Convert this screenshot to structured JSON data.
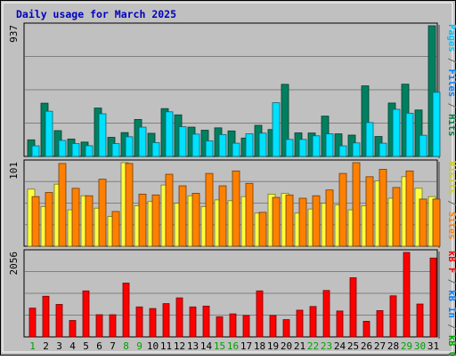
{
  "chart_data": {
    "type": "bar",
    "title": "Daily usage for March 2025",
    "categories": [
      "1",
      "2",
      "3",
      "4",
      "5",
      "6",
      "7",
      "8",
      "9",
      "10",
      "11",
      "12",
      "13",
      "14",
      "15",
      "16",
      "17",
      "18",
      "19",
      "20",
      "21",
      "22",
      "23",
      "24",
      "25",
      "26",
      "27",
      "28",
      "29",
      "30",
      "31"
    ],
    "weekend_days": [
      1,
      8,
      9,
      15,
      16,
      22,
      23,
      29,
      30
    ],
    "panels": [
      {
        "id": "hits-files-pages",
        "ymax_label": "937",
        "ylim": [
          0,
          937
        ],
        "legend": [
          {
            "text": "Pages",
            "color": "#00c0ff"
          },
          {
            "text": " / ",
            "color": "#666666"
          },
          {
            "text": "Files",
            "color": "#0080ff"
          },
          {
            "text": " / ",
            "color": "#666666"
          },
          {
            "text": "Hits",
            "color": "#008040"
          }
        ],
        "series": [
          {
            "name": "Hits",
            "color": "#008060",
            "values": [
              119,
              382,
              185,
              125,
              103,
              347,
              137,
              171,
              265,
              166,
              343,
              298,
              210,
              188,
              205,
              183,
              132,
              223,
              193,
              517,
              169,
              168,
              289,
              162,
              153,
              506,
              143,
              383,
              518,
              333,
              937
            ]
          },
          {
            "name": "Pages",
            "color": "#00e0ff",
            "values": [
              76,
              324,
              115,
              92,
              77,
              306,
              92,
              141,
              210,
              99,
              320,
              213,
              160,
              112,
              157,
              95,
              162,
              167,
              385,
              122,
              122,
              148,
              162,
              76,
              97,
              243,
              95,
              338,
              310,
              152,
              460
            ]
          }
        ]
      },
      {
        "id": "visits-sites",
        "ymax_label": "101",
        "ylim": [
          0,
          101
        ],
        "legend": [
          {
            "text": "Visits",
            "color": "#d0d000"
          },
          {
            "text": " / ",
            "color": "#666666"
          },
          {
            "text": "Sites",
            "color": "#ff8000"
          }
        ],
        "series": [
          {
            "name": "Visits",
            "color": "#ffff40",
            "values": [
              69,
              48,
              75,
              44,
              61,
              46,
              36,
              101,
              49,
              54,
              74,
              52,
              61,
              48,
              56,
              55,
              60,
              40,
              63,
              64,
              40,
              45,
              52,
              50,
              44,
              49,
              79,
              58,
              84,
              70,
              60
            ]
          },
          {
            "name": "Sites",
            "color": "#ff8000",
            "values": [
              60,
              65,
              100,
              70,
              61,
              81,
              42,
              100,
              63,
              62,
              87,
              73,
              64,
              88,
              73,
              91,
              76,
              41,
              59,
              62,
              58,
              61,
              68,
              88,
              101,
              84,
              93,
              71,
              91,
              57,
              57
            ]
          }
        ]
      },
      {
        "id": "kbytes",
        "ymax_label": "2056",
        "ylim": [
          0,
          2056
        ],
        "legend": [
          {
            "text": "kB F",
            "color": "#ff0000"
          },
          {
            "text": " / ",
            "color": "#666666"
          },
          {
            "text": "kB In",
            "color": "#0080ff"
          },
          {
            "text": " / ",
            "color": "#666666"
          },
          {
            "text": "kB Out",
            "color": "#00a000"
          }
        ],
        "series": [
          {
            "name": "kB F",
            "color": "#ff0000",
            "values": [
              700,
              990,
              790,
              400,
              1120,
              540,
              540,
              1310,
              730,
              690,
              810,
              950,
              730,
              750,
              490,
              560,
              520,
              1120,
              520,
              420,
              650,
              740,
              1130,
              630,
              1440,
              380,
              640,
              1000,
              2056,
              800,
              1920
            ]
          }
        ]
      }
    ],
    "xlabel": "",
    "ylabel": ""
  }
}
